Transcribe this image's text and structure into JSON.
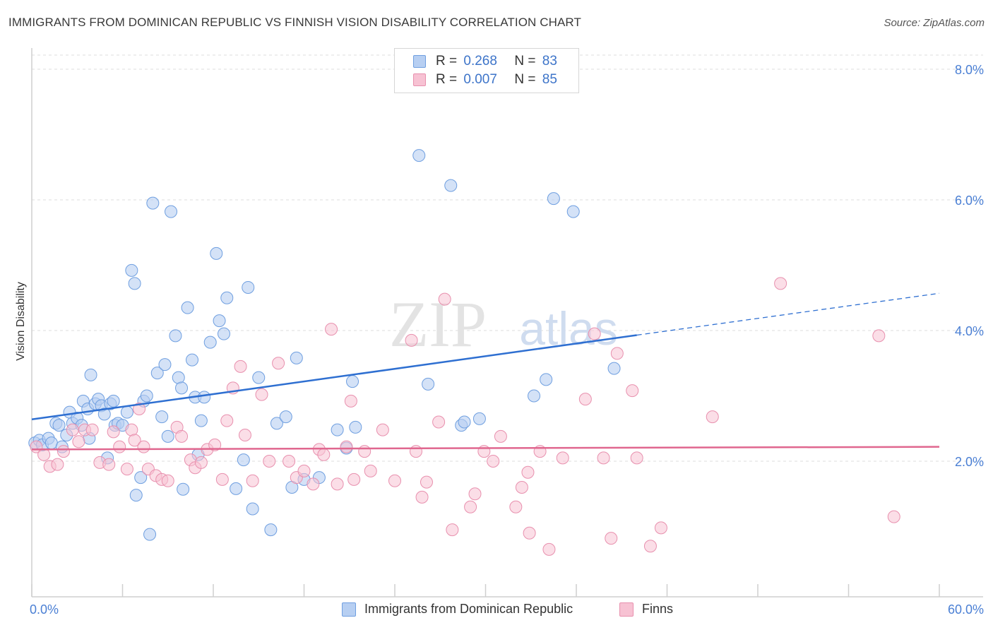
{
  "title": "IMMIGRANTS FROM DOMINICAN REPUBLIC VS FINNISH VISION DISABILITY CORRELATION CHART",
  "source": "Source: ZipAtlas.com",
  "watermark": {
    "zip": "ZIP",
    "atlas": "atlas"
  },
  "legend": {
    "series1": {
      "r_label": "R =",
      "r_value": "0.268",
      "n_label": "N =",
      "n_value": "83"
    },
    "series2": {
      "r_label": "R =",
      "r_value": "0.007",
      "n_label": "N =",
      "n_value": "85"
    }
  },
  "bottom_legend": {
    "series1": "Immigrants from Dominican Republic",
    "series2": "Finns"
  },
  "colors": {
    "blue_fill": "#b7cff2",
    "blue_stroke": "#6f9fe0",
    "blue_line": "#2e6fd1",
    "pink_fill": "#f7c2d3",
    "pink_stroke": "#e890ae",
    "pink_line": "#e0678f",
    "grid": "#dddddd",
    "axis_text": "#4a7fd4"
  },
  "chart_data": {
    "type": "scatter",
    "title": "IMMIGRANTS FROM DOMINICAN REPUBLIC VS FINNISH VISION DISABILITY CORRELATION CHART",
    "xlabel": "",
    "ylabel": "Vision Disability",
    "xlim": [
      0,
      60
    ],
    "ylim": [
      0,
      8.5
    ],
    "x_tick_labels": [
      "0.0%",
      "60.0%"
    ],
    "y_ticks": [
      2,
      4,
      6,
      8
    ],
    "y_tick_labels": [
      "2.0%",
      "4.0%",
      "6.0%",
      "8.0%"
    ],
    "grid": true,
    "legend_position": "top-center",
    "series": [
      {
        "name": "Immigrants from Dominican Republic",
        "r": 0.268,
        "n": 83,
        "trend": {
          "x0": 0,
          "y0": 2.64,
          "x1": 40,
          "y1": 3.93,
          "dash_x1": 60,
          "dash_y1": 4.57
        },
        "points": [
          [
            0.2,
            2.28
          ],
          [
            0.5,
            2.32
          ],
          [
            0.7,
            2.25
          ],
          [
            1.1,
            2.35
          ],
          [
            1.3,
            2.28
          ],
          [
            1.6,
            2.58
          ],
          [
            1.8,
            2.55
          ],
          [
            2.0,
            2.22
          ],
          [
            2.3,
            2.4
          ],
          [
            2.5,
            2.75
          ],
          [
            2.7,
            2.58
          ],
          [
            3.0,
            2.66
          ],
          [
            3.3,
            2.55
          ],
          [
            3.4,
            2.92
          ],
          [
            3.7,
            2.8
          ],
          [
            3.8,
            2.35
          ],
          [
            3.9,
            3.32
          ],
          [
            4.2,
            2.88
          ],
          [
            4.4,
            2.95
          ],
          [
            4.6,
            2.85
          ],
          [
            4.8,
            2.72
          ],
          [
            5.0,
            2.05
          ],
          [
            5.2,
            2.88
          ],
          [
            5.4,
            2.92
          ],
          [
            5.5,
            2.55
          ],
          [
            5.7,
            2.58
          ],
          [
            6.0,
            2.55
          ],
          [
            6.3,
            2.75
          ],
          [
            6.6,
            4.92
          ],
          [
            6.8,
            4.72
          ],
          [
            6.9,
            1.48
          ],
          [
            7.2,
            1.75
          ],
          [
            7.4,
            2.92
          ],
          [
            7.6,
            3.0
          ],
          [
            7.8,
            0.88
          ],
          [
            8.0,
            5.95
          ],
          [
            8.3,
            3.35
          ],
          [
            8.6,
            2.68
          ],
          [
            8.8,
            3.48
          ],
          [
            9.0,
            2.38
          ],
          [
            9.2,
            5.82
          ],
          [
            9.5,
            3.92
          ],
          [
            9.7,
            3.28
          ],
          [
            9.9,
            3.12
          ],
          [
            10.0,
            1.57
          ],
          [
            10.3,
            4.35
          ],
          [
            10.6,
            3.55
          ],
          [
            10.8,
            2.98
          ],
          [
            11.0,
            2.1
          ],
          [
            11.2,
            2.62
          ],
          [
            11.4,
            2.98
          ],
          [
            11.8,
            3.82
          ],
          [
            12.2,
            5.18
          ],
          [
            12.4,
            4.15
          ],
          [
            12.7,
            3.95
          ],
          [
            12.9,
            4.5
          ],
          [
            13.5,
            1.58
          ],
          [
            14.0,
            2.02
          ],
          [
            14.3,
            4.66
          ],
          [
            14.6,
            1.27
          ],
          [
            15.0,
            3.28
          ],
          [
            15.8,
            0.95
          ],
          [
            16.2,
            2.58
          ],
          [
            16.8,
            2.68
          ],
          [
            17.2,
            1.6
          ],
          [
            17.5,
            3.58
          ],
          [
            18.0,
            1.72
          ],
          [
            19.0,
            1.75
          ],
          [
            20.2,
            2.48
          ],
          [
            20.8,
            2.2
          ],
          [
            21.2,
            3.22
          ],
          [
            21.4,
            2.52
          ],
          [
            25.6,
            6.68
          ],
          [
            26.2,
            3.18
          ],
          [
            27.7,
            6.22
          ],
          [
            28.4,
            2.55
          ],
          [
            28.6,
            2.6
          ],
          [
            29.6,
            2.65
          ],
          [
            33.2,
            3.0
          ],
          [
            34.0,
            3.25
          ],
          [
            34.5,
            6.02
          ],
          [
            35.8,
            5.82
          ],
          [
            38.5,
            3.42
          ]
        ]
      },
      {
        "name": "Finns",
        "r": 0.007,
        "n": 85,
        "trend": {
          "x0": 0,
          "y0": 2.18,
          "x1": 60,
          "y1": 2.22
        },
        "points": [
          [
            0.3,
            2.22
          ],
          [
            0.8,
            2.1
          ],
          [
            1.2,
            1.92
          ],
          [
            1.7,
            1.95
          ],
          [
            2.1,
            2.15
          ],
          [
            2.7,
            2.48
          ],
          [
            3.1,
            2.3
          ],
          [
            3.5,
            2.48
          ],
          [
            4.0,
            2.48
          ],
          [
            4.5,
            1.98
          ],
          [
            5.1,
            1.95
          ],
          [
            5.4,
            2.45
          ],
          [
            5.8,
            2.22
          ],
          [
            6.3,
            1.88
          ],
          [
            6.6,
            2.48
          ],
          [
            6.8,
            2.32
          ],
          [
            7.1,
            2.8
          ],
          [
            7.4,
            2.22
          ],
          [
            7.7,
            1.88
          ],
          [
            8.2,
            1.78
          ],
          [
            8.6,
            1.72
          ],
          [
            9.0,
            1.7
          ],
          [
            9.6,
            2.52
          ],
          [
            9.9,
            2.38
          ],
          [
            10.5,
            2.02
          ],
          [
            10.8,
            1.9
          ],
          [
            11.2,
            1.98
          ],
          [
            11.6,
            2.18
          ],
          [
            12.1,
            2.25
          ],
          [
            12.6,
            1.72
          ],
          [
            12.9,
            2.62
          ],
          [
            13.3,
            3.12
          ],
          [
            13.8,
            3.45
          ],
          [
            14.1,
            2.4
          ],
          [
            14.6,
            1.7
          ],
          [
            15.2,
            3.02
          ],
          [
            15.7,
            2.0
          ],
          [
            16.3,
            3.5
          ],
          [
            17.0,
            2.0
          ],
          [
            17.5,
            1.75
          ],
          [
            18.0,
            1.85
          ],
          [
            18.6,
            1.65
          ],
          [
            19.0,
            2.18
          ],
          [
            19.3,
            2.1
          ],
          [
            19.8,
            4.02
          ],
          [
            20.2,
            1.65
          ],
          [
            20.8,
            2.22
          ],
          [
            21.1,
            2.92
          ],
          [
            21.3,
            1.72
          ],
          [
            22.0,
            2.15
          ],
          [
            22.4,
            1.85
          ],
          [
            23.2,
            2.48
          ],
          [
            24.0,
            1.7
          ],
          [
            25.1,
            3.85
          ],
          [
            25.4,
            2.15
          ],
          [
            25.8,
            1.45
          ],
          [
            26.1,
            1.68
          ],
          [
            26.9,
            2.6
          ],
          [
            27.3,
            4.48
          ],
          [
            27.8,
            0.95
          ],
          [
            29.3,
            1.5
          ],
          [
            29.9,
            2.15
          ],
          [
            30.5,
            2.0
          ],
          [
            31.0,
            2.38
          ],
          [
            32.0,
            1.3
          ],
          [
            32.4,
            1.6
          ],
          [
            32.8,
            1.83
          ],
          [
            32.9,
            0.9
          ],
          [
            33.6,
            2.15
          ],
          [
            34.2,
            0.65
          ],
          [
            35.1,
            2.05
          ],
          [
            36.6,
            2.95
          ],
          [
            37.2,
            3.95
          ],
          [
            37.8,
            2.05
          ],
          [
            38.3,
            0.82
          ],
          [
            38.7,
            3.65
          ],
          [
            39.7,
            3.08
          ],
          [
            40.0,
            2.05
          ],
          [
            40.9,
            0.7
          ],
          [
            41.6,
            0.98
          ],
          [
            45.0,
            2.68
          ],
          [
            49.5,
            4.72
          ],
          [
            56.0,
            3.92
          ],
          [
            57.0,
            1.15
          ],
          [
            29.0,
            1.3
          ]
        ]
      }
    ]
  }
}
